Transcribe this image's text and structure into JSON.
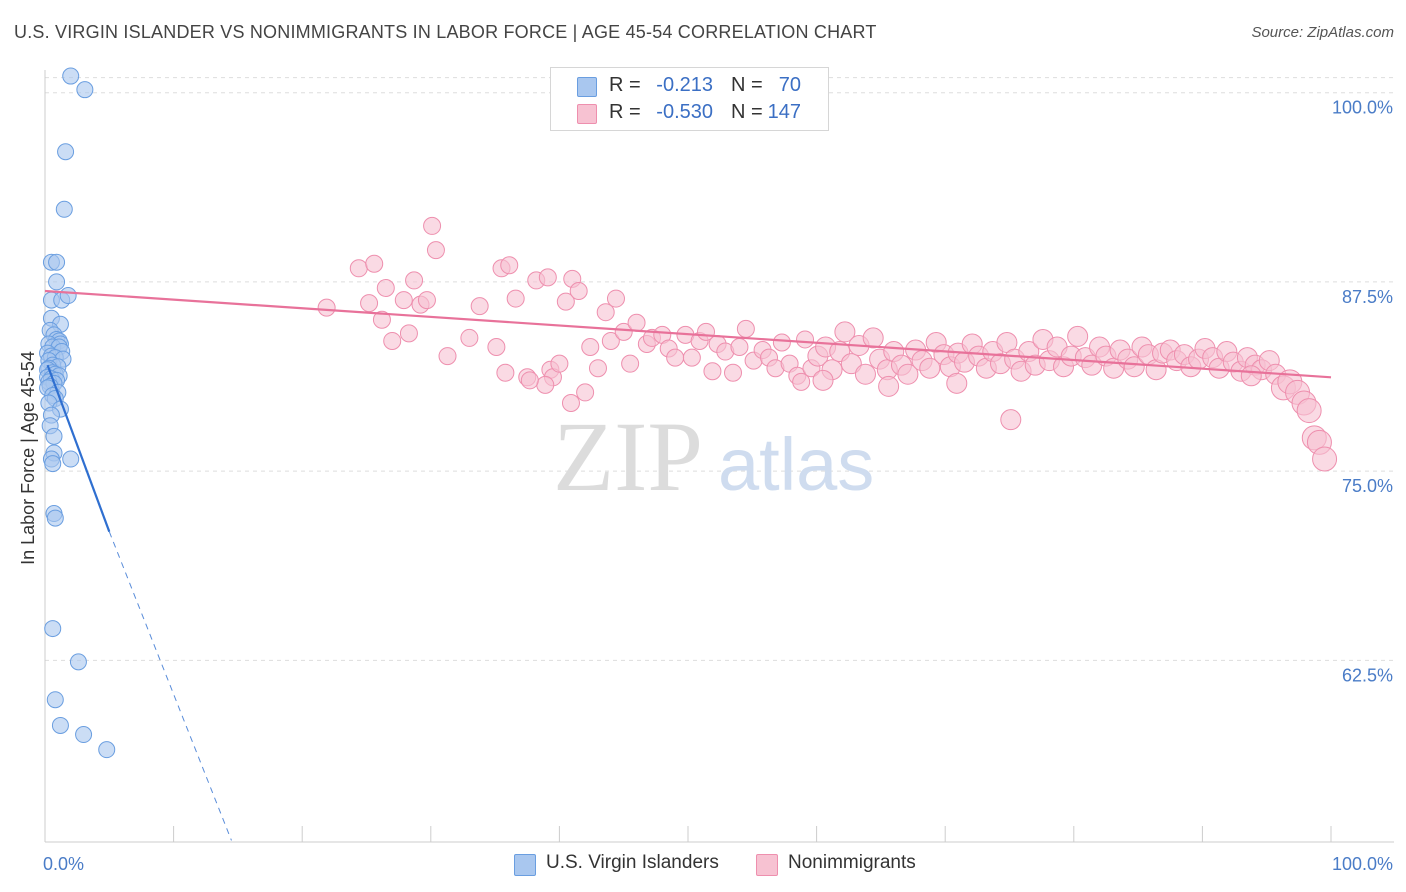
{
  "title": "U.S. VIRGIN ISLANDER VS NONIMMIGRANTS IN LABOR FORCE | AGE 45-54 CORRELATION CHART",
  "source": "Source: ZipAtlas.com",
  "watermark": {
    "zip": "ZIP",
    "atlas": "atlas"
  },
  "legend": {
    "rows": [
      {
        "r_label": "R =",
        "r_value": "-0.213",
        "n_label": "N =",
        "n_value": "70"
      },
      {
        "r_label": "R =",
        "r_value": "-0.530",
        "n_label": "N =",
        "n_value": "147"
      }
    ]
  },
  "bottom_legend": [
    "U.S. Virgin Islanders",
    "Nonimmigrants"
  ],
  "colors": {
    "blue_fill": "#a9c7ef",
    "blue_stroke": "#6a9ee0",
    "blue_line": "#2f6fd0",
    "pink_fill": "#f7c2d2",
    "pink_stroke": "#ee8fae",
    "pink_line": "#e8729a",
    "grid": "#dddddd",
    "tick_text": "#4a7cc7"
  },
  "chart_data": {
    "type": "scatter",
    "title": "U.S. VIRGIN ISLANDER VS NONIMMIGRANTS IN LABOR FORCE | AGE 45-54 CORRELATION CHART",
    "xlabel": "",
    "ylabel": "In Labor Force | Age 45-54",
    "xlim": [
      0,
      100
    ],
    "ylim": [
      50.5,
      101.5
    ],
    "x_tick_labels": [
      "0.0%",
      "100.0%"
    ],
    "y_ticks": [
      62.5,
      75.0,
      87.5,
      100.0
    ],
    "y_tick_labels": [
      "62.5%",
      "75.0%",
      "87.5%",
      "100.0%"
    ],
    "grid": true,
    "legend_position": "top-center",
    "series": [
      {
        "name": "U.S. Virgin Islanders",
        "color": "#a9c7ef",
        "trend": {
          "x0": 0.2,
          "y0": 82.0,
          "x1": 5.0,
          "y1": 71.0,
          "dash_to_x": 14.5,
          "dash_to_y": 50.6
        },
        "points": [
          [
            2.0,
            101.1
          ],
          [
            3.1,
            100.2
          ],
          [
            1.6,
            96.1
          ],
          [
            1.5,
            92.3
          ],
          [
            0.5,
            88.8
          ],
          [
            0.9,
            88.8
          ],
          [
            0.9,
            87.5
          ],
          [
            0.5,
            86.3
          ],
          [
            1.3,
            86.3
          ],
          [
            1.8,
            86.6
          ],
          [
            0.5,
            85.1
          ],
          [
            1.2,
            84.7
          ],
          [
            0.4,
            84.3
          ],
          [
            0.7,
            84.0
          ],
          [
            0.9,
            83.7
          ],
          [
            1.1,
            83.6
          ],
          [
            1.2,
            83.4
          ],
          [
            0.3,
            83.4
          ],
          [
            0.6,
            83.2
          ],
          [
            1.1,
            83.2
          ],
          [
            1.3,
            82.9
          ],
          [
            0.2,
            82.8
          ],
          [
            0.5,
            82.6
          ],
          [
            0.8,
            82.5
          ],
          [
            1.4,
            82.4
          ],
          [
            0.3,
            82.3
          ],
          [
            0.6,
            82.0
          ],
          [
            1.0,
            81.9
          ],
          [
            0.3,
            81.8
          ],
          [
            0.2,
            81.7
          ],
          [
            0.6,
            81.5
          ],
          [
            0.8,
            81.4
          ],
          [
            1.1,
            81.3
          ],
          [
            0.2,
            81.2
          ],
          [
            0.5,
            81.1
          ],
          [
            0.9,
            81.0
          ],
          [
            0.3,
            80.9
          ],
          [
            0.7,
            80.8
          ],
          [
            0.4,
            80.6
          ],
          [
            0.2,
            80.5
          ],
          [
            1.0,
            80.2
          ],
          [
            0.6,
            80.0
          ],
          [
            0.8,
            79.8
          ],
          [
            0.3,
            79.5
          ],
          [
            1.2,
            79.1
          ],
          [
            0.5,
            78.7
          ],
          [
            0.4,
            78.0
          ],
          [
            0.7,
            77.3
          ],
          [
            0.7,
            76.2
          ],
          [
            0.5,
            75.8
          ],
          [
            0.6,
            75.5
          ],
          [
            2.0,
            75.8
          ],
          [
            0.7,
            72.2
          ],
          [
            0.8,
            71.9
          ],
          [
            0.6,
            64.6
          ],
          [
            2.6,
            62.4
          ],
          [
            0.8,
            59.9
          ],
          [
            1.2,
            58.2
          ],
          [
            3.0,
            57.6
          ],
          [
            4.8,
            56.6
          ]
        ]
      },
      {
        "name": "Nonimmigrants",
        "color": "#f7c2d2",
        "trend": {
          "x0": 0.0,
          "y0": 86.9,
          "x1": 100.0,
          "y1": 81.2
        },
        "points": [
          [
            21.9,
            85.8
          ],
          [
            24.4,
            88.4
          ],
          [
            25.6,
            88.7
          ],
          [
            25.2,
            86.1
          ],
          [
            26.2,
            85.0
          ],
          [
            26.5,
            87.1
          ],
          [
            27.0,
            83.6
          ],
          [
            27.9,
            86.3
          ],
          [
            28.3,
            84.1
          ],
          [
            28.7,
            87.6
          ],
          [
            29.2,
            86.0
          ],
          [
            29.7,
            86.3
          ],
          [
            30.1,
            91.2
          ],
          [
            30.4,
            89.6
          ],
          [
            31.3,
            82.6
          ],
          [
            33.0,
            83.8
          ],
          [
            33.8,
            85.9
          ],
          [
            35.1,
            83.2
          ],
          [
            35.5,
            88.4
          ],
          [
            35.8,
            81.5
          ],
          [
            36.1,
            88.6
          ],
          [
            36.6,
            86.4
          ],
          [
            37.5,
            81.2
          ],
          [
            38.2,
            87.6
          ],
          [
            39.1,
            87.8
          ],
          [
            39.3,
            81.7
          ],
          [
            39.5,
            81.2
          ],
          [
            40.0,
            82.1
          ],
          [
            40.5,
            86.2
          ],
          [
            41.0,
            87.7
          ],
          [
            41.5,
            86.9
          ],
          [
            42.0,
            80.2
          ],
          [
            42.4,
            83.2
          ],
          [
            43.0,
            81.8
          ],
          [
            43.6,
            85.5
          ],
          [
            44.0,
            83.6
          ],
          [
            44.4,
            86.4
          ],
          [
            45.0,
            84.2
          ],
          [
            45.5,
            82.1
          ],
          [
            46.0,
            84.8
          ],
          [
            46.8,
            83.4
          ],
          [
            47.2,
            83.8
          ],
          [
            48.0,
            84.0
          ],
          [
            48.5,
            83.1
          ],
          [
            49.0,
            82.5
          ],
          [
            49.8,
            84.0
          ],
          [
            50.3,
            82.5
          ],
          [
            50.9,
            83.6
          ],
          [
            51.4,
            84.2
          ],
          [
            51.9,
            81.6
          ],
          [
            52.3,
            83.4
          ],
          [
            52.9,
            82.9
          ],
          [
            53.5,
            81.5
          ],
          [
            54.0,
            83.2
          ],
          [
            54.5,
            84.4
          ],
          [
            55.1,
            82.3
          ],
          [
            55.8,
            83.0
          ],
          [
            56.3,
            82.5
          ],
          [
            56.8,
            81.8
          ],
          [
            57.3,
            83.5
          ],
          [
            57.9,
            82.1
          ],
          [
            58.5,
            81.3
          ],
          [
            59.1,
            83.7
          ],
          [
            59.6,
            81.8
          ],
          [
            60.1,
            82.6
          ],
          [
            60.7,
            83.2
          ],
          [
            61.2,
            81.7
          ],
          [
            61.8,
            82.9
          ],
          [
            62.2,
            84.2
          ],
          [
            62.7,
            82.1
          ],
          [
            63.3,
            83.3
          ],
          [
            63.8,
            81.4
          ],
          [
            64.4,
            83.8
          ],
          [
            64.9,
            82.4
          ],
          [
            65.5,
            81.7
          ],
          [
            66.0,
            82.9
          ],
          [
            66.6,
            82.0
          ],
          [
            67.1,
            81.4
          ],
          [
            67.7,
            83.0
          ],
          [
            68.2,
            82.3
          ],
          [
            68.8,
            81.8
          ],
          [
            69.3,
            83.5
          ],
          [
            69.9,
            82.7
          ],
          [
            70.4,
            81.9
          ],
          [
            71.0,
            82.8
          ],
          [
            71.5,
            82.2
          ],
          [
            72.1,
            83.4
          ],
          [
            72.6,
            82.6
          ],
          [
            73.2,
            81.8
          ],
          [
            73.7,
            82.9
          ],
          [
            74.3,
            82.1
          ],
          [
            74.8,
            83.5
          ],
          [
            75.4,
            82.4
          ],
          [
            75.9,
            81.6
          ],
          [
            76.5,
            82.9
          ],
          [
            77.0,
            82.0
          ],
          [
            77.6,
            83.7
          ],
          [
            78.1,
            82.3
          ],
          [
            78.7,
            83.2
          ],
          [
            79.2,
            81.9
          ],
          [
            79.8,
            82.6
          ],
          [
            80.3,
            83.9
          ],
          [
            80.9,
            82.5
          ],
          [
            81.4,
            82.0
          ],
          [
            82.0,
            83.2
          ],
          [
            82.5,
            82.6
          ],
          [
            83.1,
            81.8
          ],
          [
            83.6,
            83.0
          ],
          [
            84.2,
            82.4
          ],
          [
            84.7,
            81.9
          ],
          [
            85.3,
            83.2
          ],
          [
            85.8,
            82.7
          ],
          [
            86.4,
            81.7
          ],
          [
            86.9,
            82.8
          ],
          [
            87.5,
            83.0
          ],
          [
            88.0,
            82.3
          ],
          [
            88.6,
            82.7
          ],
          [
            89.1,
            81.9
          ],
          [
            89.7,
            82.4
          ],
          [
            90.2,
            83.1
          ],
          [
            90.8,
            82.5
          ],
          [
            91.3,
            81.8
          ],
          [
            91.9,
            82.9
          ],
          [
            92.4,
            82.2
          ],
          [
            93.0,
            81.6
          ],
          [
            93.5,
            82.5
          ],
          [
            94.1,
            82.0
          ],
          [
            94.6,
            81.7
          ],
          [
            95.2,
            82.3
          ],
          [
            95.7,
            81.4
          ],
          [
            96.3,
            80.5
          ],
          [
            96.8,
            80.9
          ],
          [
            97.4,
            80.2
          ],
          [
            97.9,
            79.5
          ],
          [
            98.3,
            79.0
          ],
          [
            98.7,
            77.2
          ],
          [
            99.1,
            76.9
          ],
          [
            99.5,
            75.8
          ],
          [
            75.1,
            78.4
          ],
          [
            40.9,
            79.5
          ],
          [
            38.9,
            80.7
          ],
          [
            37.7,
            81.0
          ],
          [
            60.5,
            81.0
          ],
          [
            70.9,
            80.8
          ],
          [
            65.6,
            80.6
          ],
          [
            58.8,
            80.9
          ],
          [
            93.8,
            81.3
          ]
        ]
      }
    ]
  }
}
